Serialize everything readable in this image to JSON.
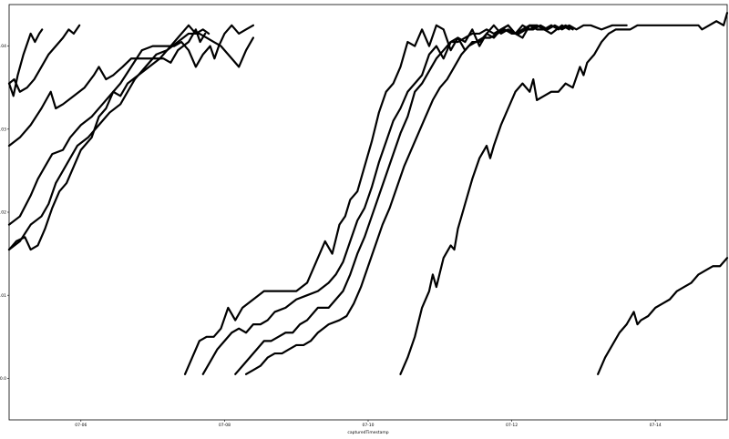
{
  "chart_data": {
    "type": "line",
    "title": "",
    "xlabel": "capturedTimestamp",
    "ylabel": "",
    "xlim": [
      0,
      100
    ],
    "ylim": [
      99.995,
      100.045
    ],
    "grid": false,
    "x_ticks": [
      {
        "x": 10,
        "label": "07-06"
      },
      {
        "x": 30,
        "label": "07-08"
      },
      {
        "x": 50,
        "label": "07-10"
      },
      {
        "x": 70,
        "label": "07-12"
      },
      {
        "x": 90,
        "label": "07-14"
      }
    ],
    "y_ticks": [
      {
        "y": 100.0,
        "label": "100.0"
      },
      {
        "y": 100.01,
        "label": "100.01"
      },
      {
        "y": 100.02,
        "label": "100.02"
      },
      {
        "y": 100.03,
        "label": "100.03"
      },
      {
        "y": 100.04,
        "label": "100.04"
      }
    ],
    "series": [
      {
        "x": [
          0.0,
          0.6,
          1.2,
          2.0,
          3.0,
          3.6,
          4.2,
          4.6
        ],
        "y": [
          100.0355,
          100.034,
          100.0365,
          100.039,
          100.0415,
          100.0405,
          100.0415,
          100.042
        ]
      },
      {
        "x": [
          0.0,
          0.7,
          1.5,
          2.5,
          3.5,
          4.5,
          5.5,
          6.5,
          7.5,
          8.3,
          9.0,
          9.8
        ],
        "y": [
          100.0355,
          100.036,
          100.0345,
          100.035,
          100.036,
          100.0375,
          100.039,
          100.04,
          100.041,
          100.042,
          100.0415,
          100.0425
        ]
      },
      {
        "x": [
          0.0,
          1.5,
          3.0,
          4.5,
          5.8,
          6.5,
          7.5,
          9.0,
          10.5,
          11.8,
          12.5,
          13.5,
          14.5,
          15.8,
          17.0,
          18.5,
          20.0,
          21.5,
          22.5,
          23.5,
          25.0,
          26.0,
          26.6,
          27.3
        ],
        "y": [
          100.028,
          100.029,
          100.0305,
          100.0325,
          100.0345,
          100.0325,
          100.033,
          100.034,
          100.035,
          100.0365,
          100.0375,
          100.036,
          100.0365,
          100.0375,
          100.0385,
          100.0385,
          100.0385,
          100.0385,
          100.038,
          100.0395,
          100.0405,
          100.042,
          100.0405,
          100.0415
        ]
      },
      {
        "x": [
          0.0,
          1.5,
          3.0,
          4.0,
          5.0,
          6.0,
          7.5,
          8.5,
          10.0,
          11.5,
          13.0,
          14.5,
          15.5,
          16.5,
          18.0,
          19.5,
          21.0,
          22.0,
          23.5,
          25.0,
          26.0,
          27.0,
          27.8
        ],
        "y": [
          100.0185,
          100.0195,
          100.022,
          100.024,
          100.0255,
          100.027,
          100.0275,
          100.029,
          100.0305,
          100.0315,
          100.033,
          100.0345,
          100.034,
          100.0355,
          100.0365,
          100.0375,
          100.0385,
          100.0395,
          100.041,
          100.0425,
          100.0415,
          100.042,
          100.0415
        ]
      },
      {
        "x": [
          0.0,
          1.0,
          2.2,
          3.0,
          4.0,
          5.0,
          6.0,
          7.0,
          8.0,
          9.0,
          10.0,
          11.5,
          12.5,
          13.5,
          14.5,
          15.5,
          17.0,
          18.5,
          20.0,
          21.5,
          23.0,
          24.0,
          25.0,
          26.0,
          27.0,
          28.0,
          28.6,
          29.2,
          30.0,
          31.0,
          32.0,
          33.0,
          34.0
        ],
        "y": [
          100.0155,
          100.0165,
          100.017,
          100.0155,
          100.016,
          100.018,
          100.0205,
          100.0225,
          100.0235,
          100.0255,
          100.0275,
          100.029,
          100.0315,
          100.0325,
          100.0345,
          100.0355,
          100.0375,
          100.0395,
          100.04,
          100.04,
          100.04,
          100.0405,
          100.0395,
          100.0375,
          100.039,
          100.04,
          100.0385,
          100.04,
          100.0415,
          100.0425,
          100.0415,
          100.042,
          100.0425
        ]
      },
      {
        "x": [
          0.0,
          1.5,
          3.0,
          4.5,
          5.5,
          6.5,
          7.5,
          8.5,
          9.5,
          11.0,
          12.5,
          14.0,
          15.5,
          16.5,
          17.5,
          19.0,
          20.5,
          22.0,
          23.5,
          25.0,
          26.5,
          27.5,
          28.5,
          29.5,
          31.0,
          32.0,
          33.0,
          34.0
        ],
        "y": [
          100.0155,
          100.0165,
          100.0185,
          100.0195,
          100.021,
          100.0235,
          100.025,
          100.0265,
          100.028,
          100.029,
          100.0305,
          100.032,
          100.033,
          100.0345,
          100.036,
          100.0375,
          100.039,
          100.0395,
          100.0405,
          100.0415,
          100.0415,
          100.041,
          100.0405,
          100.04,
          100.0385,
          100.0375,
          100.0395,
          100.041
        ]
      },
      {
        "x": [
          24.5,
          25.5,
          26.5,
          27.5,
          28.5,
          29.5,
          30.5,
          31.5,
          32.5,
          34.0,
          35.5,
          37.0,
          38.5,
          40.0,
          41.5,
          43.0,
          44.0,
          45.0,
          46.0,
          46.8,
          47.5,
          48.5,
          49.5,
          50.5,
          51.5,
          52.5,
          53.5,
          54.5,
          55.5,
          56.5,
          57.5,
          58.5,
          59.5,
          60.5,
          61.5,
          62.5,
          63.5,
          64.5,
          65.5,
          66.5,
          67.5,
          68.5,
          69.5,
          70.5,
          71.5,
          72.5,
          73.5,
          74.5,
          75.5,
          77.0,
          78.0
        ],
        "y": [
          100.0005,
          100.0025,
          100.0045,
          100.005,
          100.005,
          100.006,
          100.0085,
          100.007,
          100.0085,
          100.0095,
          100.0105,
          100.0105,
          100.0105,
          100.0105,
          100.0115,
          100.0145,
          100.0165,
          100.015,
          100.0185,
          100.0195,
          100.0215,
          100.0225,
          100.0255,
          100.0285,
          100.032,
          100.0345,
          100.0355,
          100.0375,
          100.0405,
          100.04,
          100.042,
          100.04,
          100.0425,
          100.042,
          100.0395,
          100.041,
          100.0405,
          100.042,
          100.04,
          100.0415,
          100.041,
          100.042,
          100.0425,
          100.0415,
          100.041,
          100.0425,
          100.042,
          100.042,
          100.0415,
          100.0425,
          100.042
        ]
      },
      {
        "x": [
          27.0,
          28.0,
          29.0,
          30.0,
          31.0,
          32.0,
          33.0,
          34.0,
          35.0,
          36.0,
          37.0,
          38.5,
          40.0,
          41.5,
          43.0,
          44.5,
          45.5,
          46.5,
          47.5,
          48.5,
          49.5,
          50.5,
          51.5,
          52.5,
          53.5,
          54.5,
          55.5,
          56.5,
          57.5,
          58.5,
          59.5,
          60.5,
          61.5,
          62.5,
          63.5,
          64.5,
          65.5,
          66.5,
          67.5,
          68.5,
          69.5,
          70.5,
          71.5,
          72.5,
          73.5,
          74.5,
          75.5
        ],
        "y": [
          100.0005,
          100.002,
          100.0035,
          100.0045,
          100.0055,
          100.006,
          100.0055,
          100.0065,
          100.0065,
          100.007,
          100.008,
          100.0085,
          100.0095,
          100.01,
          100.0105,
          100.0115,
          100.0125,
          100.014,
          100.0165,
          100.019,
          100.0205,
          100.023,
          100.026,
          100.0285,
          100.031,
          100.0325,
          100.0345,
          100.0355,
          100.0365,
          100.039,
          100.04,
          100.0385,
          100.0405,
          100.041,
          100.0395,
          100.0405,
          100.0405,
          100.0415,
          100.0425,
          100.0415,
          100.042,
          100.0415,
          100.0425,
          100.042,
          100.0425,
          100.042,
          100.0425
        ]
      },
      {
        "x": [
          31.5,
          32.5,
          33.5,
          34.5,
          35.5,
          36.5,
          37.5,
          38.5,
          39.5,
          40.5,
          41.5,
          43.0,
          44.5,
          45.5,
          46.5,
          47.5,
          48.5,
          49.5,
          50.5,
          51.5,
          52.5,
          53.5,
          54.5,
          55.5,
          56.5,
          57.5,
          58.5,
          59.5,
          60.5,
          61.5,
          62.5,
          63.5,
          64.5,
          65.5,
          66.5,
          67.5,
          68.5,
          69.5,
          70.5,
          71.5,
          72.5,
          73.5,
          74.5,
          75.5,
          76.5,
          77.5,
          78.5
        ],
        "y": [
          100.0005,
          100.0015,
          100.0025,
          100.0035,
          100.0045,
          100.0045,
          100.005,
          100.0055,
          100.0055,
          100.0065,
          100.007,
          100.0085,
          100.0085,
          100.0095,
          100.0105,
          100.0125,
          100.015,
          100.017,
          100.0195,
          100.022,
          100.0245,
          100.027,
          100.0295,
          100.0315,
          100.0345,
          100.0355,
          100.037,
          100.0385,
          100.0395,
          100.0405,
          100.0405,
          100.041,
          100.0415,
          100.0415,
          100.042,
          100.0415,
          100.042,
          100.0425,
          100.0415,
          100.042,
          100.0425,
          100.0425,
          100.042,
          100.0425,
          100.042,
          100.0425,
          100.042
        ]
      },
      {
        "x": [
          33.0,
          34.0,
          35.0,
          36.0,
          37.0,
          38.0,
          39.0,
          40.0,
          41.0,
          42.0,
          43.0,
          44.5,
          46.0,
          47.0,
          48.0,
          49.0,
          50.0,
          51.0,
          52.0,
          53.0,
          54.0,
          55.0,
          56.0,
          57.0,
          58.0,
          59.0,
          60.0,
          61.0,
          62.0,
          63.0,
          64.0,
          65.0,
          66.0,
          67.0,
          68.0,
          69.0,
          70.0,
          71.0,
          72.0,
          73.0,
          74.0,
          75.0,
          76.0,
          77.0,
          78.0,
          79.0,
          80.0,
          81.0,
          82.5,
          84.0,
          86.0
        ],
        "y": [
          100.0005,
          100.001,
          100.0015,
          100.0025,
          100.003,
          100.003,
          100.0035,
          100.004,
          100.004,
          100.0045,
          100.0055,
          100.0065,
          100.007,
          100.0075,
          100.009,
          100.011,
          100.0135,
          100.016,
          100.0185,
          100.0205,
          100.023,
          100.0255,
          100.0275,
          100.0295,
          100.0315,
          100.0335,
          100.035,
          100.036,
          100.0375,
          100.039,
          100.04,
          100.0405,
          100.041,
          100.041,
          100.0415,
          100.042,
          100.0415,
          100.0415,
          100.042,
          100.042,
          100.0425,
          100.042,
          100.0425,
          100.042,
          100.0425,
          100.042,
          100.0425,
          100.0425,
          100.042,
          100.0425,
          100.0425
        ]
      },
      {
        "x": [
          54.5,
          55.5,
          56.5,
          57.5,
          58.5,
          59.0,
          59.5,
          60.5,
          61.5,
          62.0,
          62.5,
          63.5,
          64.5,
          65.5,
          66.5,
          67.0,
          67.5,
          68.5,
          69.5,
          70.5,
          71.5,
          72.5,
          73.0,
          73.5,
          74.5,
          75.5,
          76.0,
          76.5,
          77.5,
          78.5,
          79.5,
          80.0,
          80.5,
          81.5,
          82.5,
          83.5,
          84.5,
          85.5,
          86.5,
          87.5,
          88.5,
          89.5,
          90.5,
          91.5,
          92.5,
          93.5,
          94.5,
          95.5,
          96.0,
          96.5,
          97.5,
          98.5,
          99.5,
          100.0
        ],
        "y": [
          100.0005,
          100.0025,
          100.005,
          100.0085,
          100.0105,
          100.0125,
          100.011,
          100.0145,
          100.016,
          100.0155,
          100.018,
          100.021,
          100.024,
          100.0265,
          100.028,
          100.0265,
          100.028,
          100.0305,
          100.0325,
          100.0345,
          100.0355,
          100.0345,
          100.036,
          100.0335,
          100.034,
          100.0345,
          100.0345,
          100.0345,
          100.0355,
          100.035,
          100.0375,
          100.0365,
          100.038,
          100.039,
          100.0405,
          100.0415,
          100.042,
          100.042,
          100.042,
          100.0425,
          100.0425,
          100.0425,
          100.0425,
          100.0425,
          100.0425,
          100.0425,
          100.0425,
          100.0425,
          100.0425,
          100.042,
          100.0425,
          100.043,
          100.0425,
          100.044
        ]
      },
      {
        "x": [
          82.0,
          83.0,
          84.0,
          85.0,
          86.0,
          87.0,
          87.5,
          88.0,
          89.0,
          90.0,
          91.0,
          92.0,
          93.0,
          94.0,
          95.0,
          96.0,
          97.0,
          98.0,
          99.0,
          100.0
        ],
        "y": [
          100.0005,
          100.0025,
          100.004,
          100.0055,
          100.0065,
          100.008,
          100.0065,
          100.007,
          100.0075,
          100.0085,
          100.009,
          100.0095,
          100.0105,
          100.011,
          100.0115,
          100.0125,
          100.013,
          100.0135,
          100.0135,
          100.0145
        ]
      }
    ]
  }
}
